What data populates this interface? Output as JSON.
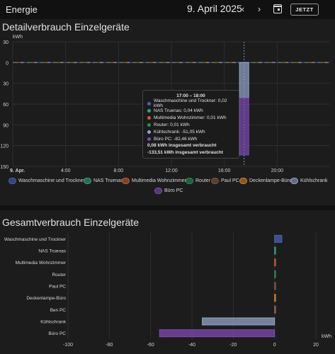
{
  "header": {
    "title": "Energie",
    "date": "9. April 2025",
    "prev_label": "‹",
    "next_label": "›",
    "today_label": "JETZT"
  },
  "colors": {
    "Waschmaschine und Trockner": "#4a62b0",
    "NAS Truenas": "#3e9e7a",
    "Multimedia Wohnzimmer": "#c65a3a",
    "Router": "#2c8a55",
    "Paul PC": "#7a5a44",
    "Deckenlampe-Büro": "#c9822e",
    "Kühlschrank": "#93a4c8",
    "Büro PC": "#7e4ab3",
    "Ben PC": "#8a6a55"
  },
  "detail": {
    "title": "Detailverbrauch Einzelgeräte",
    "tooltip": {
      "title": "17:00 – 18:00",
      "rows": [
        {
          "name": "Waschmaschine und Trockner",
          "text": "Waschmaschine und Trockner: 0,02 kWh"
        },
        {
          "name": "NAS Truenas",
          "text": "NAS Truenas: 0,04 kWh"
        },
        {
          "name": "Multimedia Wohnzimmer",
          "text": "Multimedia Wohnzimmer: 0,01 kWh"
        },
        {
          "name": "Router",
          "text": "Router: 0,01 kWh"
        },
        {
          "name": "Kühlschrank",
          "text": "Kühlschrank: -51,05 kWh"
        },
        {
          "name": "Büro PC",
          "text": "Büro PC: -82,46 kWh"
        }
      ],
      "sum_pos": "0,08 kWh insgesamt verbraucht",
      "sum_neg": "-133,51 kWh insgesamt verbraucht"
    },
    "legend": [
      "Waschmaschine und Trockner",
      "NAS Truenas",
      "Multimedia Wohnzimmer",
      "Router",
      "Paul PC",
      "Deckenlampe-Büro",
      "Kühlschrank",
      "Büro PC"
    ]
  },
  "total": {
    "title": "Gesamtverbrauch Einzelgeräte"
  },
  "chart_data": [
    {
      "type": "bar",
      "title": "Detailverbrauch Einzelgeräte",
      "ylabel": "kWh",
      "y_tick_labels": [
        "30",
        "0",
        "30",
        "60",
        "90",
        "120",
        "150"
      ],
      "y_tick_values": [
        30,
        0,
        -30,
        -60,
        -90,
        -120,
        -150
      ],
      "ylim": [
        -150,
        30
      ],
      "x_tick_labels": [
        "9. Apr.",
        "4:00",
        "8:00",
        "12:00",
        "16:00",
        "20:00"
      ],
      "x_tick_hours": [
        0,
        4,
        8,
        12,
        16,
        20
      ],
      "xlim_hours": [
        0,
        24
      ],
      "highlight_hour": 17,
      "stack_hour": 17,
      "series": [
        {
          "name": "Waschmaschine und Trockner",
          "value": 0.02
        },
        {
          "name": "NAS Truenas",
          "value": 0.04
        },
        {
          "name": "Multimedia Wohnzimmer",
          "value": 0.01
        },
        {
          "name": "Router",
          "value": 0.01
        },
        {
          "name": "Kühlschrank",
          "value": -51.05
        },
        {
          "name": "Büro PC",
          "value": -82.46
        }
      ],
      "grid": true,
      "legend_position": "bottom"
    },
    {
      "type": "bar",
      "orientation": "horizontal",
      "title": "Gesamtverbrauch Einzelgeräte",
      "xlabel": "kWh",
      "categories": [
        "Waschmaschine und Trockner",
        "NAS Truenas",
        "Multimedia Wohnzimmer",
        "Router",
        "Paul PC",
        "Deckenlampe-Büro",
        "Ben PC",
        "Kühlschrank",
        "Büro PC"
      ],
      "values": [
        3.5,
        0.4,
        0.3,
        0.2,
        0.1,
        0.1,
        0.1,
        -35,
        -55.7
      ],
      "xlim": [
        -100,
        20
      ],
      "x_tick_labels": [
        "-100",
        "-80",
        "-60",
        "-40",
        "-20",
        "0",
        "20"
      ],
      "x_tick_values": [
        -100,
        -80,
        -60,
        -40,
        -20,
        0,
        20
      ],
      "grid": true
    }
  ]
}
